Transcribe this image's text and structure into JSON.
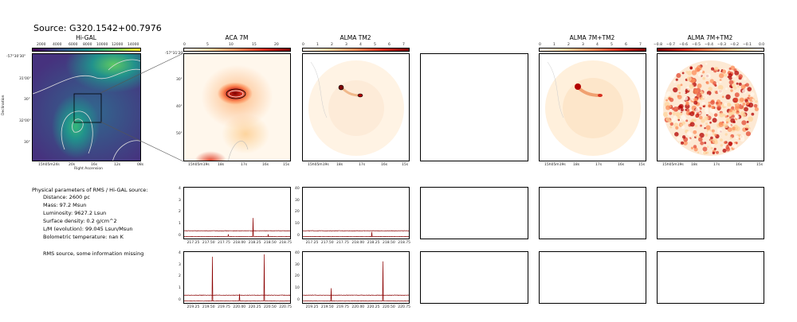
{
  "figure": {
    "title": "Source: G320.1542+00.7976"
  },
  "panels": {
    "higal": {
      "title": "Hi-GAL",
      "cbar_ticks": [
        "2000",
        "4000",
        "6000",
        "8000",
        "10000",
        "12000",
        "14000"
      ],
      "x_ticks": [
        "15h05m24s",
        "20s",
        "16s",
        "12s",
        "08s"
      ],
      "xlabel": "Right Ascension",
      "ylabel": "Declination",
      "y_ticks": [
        "-57°30'30\"",
        "31'00\"",
        "30\"",
        "32'00\"",
        "30\""
      ]
    },
    "aca": {
      "title": "ACA 7M",
      "cbar_ticks": [
        "0",
        "5",
        "10",
        "15",
        "20"
      ],
      "y_ticks": [
        "-57°31'20\"",
        "30\"",
        "40\"",
        "50\""
      ],
      "x_ticks": [
        "15h05m19s",
        "18s",
        "17s",
        "16s",
        "15s"
      ]
    },
    "tm2": {
      "title": "ALMA TM2",
      "cbar_ticks": [
        "0",
        "1",
        "2",
        "3",
        "4",
        "5",
        "6",
        "7"
      ],
      "x_ticks": [
        "15h05m19s",
        "18s",
        "17s",
        "16s",
        "15s"
      ]
    },
    "combo": {
      "title": "ALMA 7M+TM2",
      "cbar_ticks": [
        "0",
        "1",
        "2",
        "3",
        "4",
        "5",
        "6",
        "7"
      ],
      "x_ticks": [
        "15h05m19s",
        "18s",
        "17s",
        "16s",
        "15s"
      ]
    },
    "resid": {
      "title": "ALMA 7M+TM2",
      "cbar_ticks": [
        "−0.8",
        "−0.7",
        "−0.6",
        "−0.5",
        "−0.4",
        "−0.3",
        "−0.2",
        "−0.1",
        "0.0"
      ],
      "x_ticks": [
        "15h05m19s",
        "18s",
        "17s",
        "16s",
        "15s"
      ]
    }
  },
  "info": {
    "heading": "Physical parameters of RMS / Hi-GAL source:",
    "lines": [
      "Distance: 2600 pc",
      "Mass: 97.2 Msun",
      "Luminosity: 9627.2 Lsun",
      "Surface density: 0.2 g/cm^2",
      "L/M (evolution): 99.045 Lsun/Msun",
      "Bolometric temperature: nan K"
    ],
    "note": "RMS source, some information missing"
  },
  "chart_data": [
    {
      "type": "line",
      "panel": "ACA spectrum, spw 1",
      "x_ticks": [
        "217.25",
        "217.50",
        "217.75",
        "218.00",
        "218.25",
        "218.50",
        "218.75"
      ],
      "y_ticks": [
        "0",
        "1",
        "2",
        "3",
        "4"
      ],
      "xlim": [
        217.1,
        218.85
      ],
      "ylim": [
        -0.3,
        4.2
      ],
      "series": [
        {
          "baseline": 0.0,
          "peaks": [
            [
              217.82,
              0.2
            ],
            [
              218.22,
              1.6
            ],
            [
              218.47,
              0.2
            ]
          ]
        },
        {
          "baseline": 0.5,
          "peaks": []
        }
      ]
    },
    {
      "type": "line",
      "panel": "TM2 spectrum, spw 1",
      "x_ticks": [
        "217.25",
        "217.50",
        "217.75",
        "218.00",
        "218.25",
        "218.50",
        "218.75"
      ],
      "y_ticks": [
        "0",
        "10",
        "20",
        "30",
        "40"
      ],
      "xlim": [
        217.1,
        218.85
      ],
      "ylim": [
        -3,
        42
      ],
      "series": [
        {
          "baseline": 0.0,
          "peaks": [
            [
              218.22,
              4
            ]
          ]
        },
        {
          "baseline": 5.0,
          "peaks": []
        }
      ]
    },
    {
      "type": "line",
      "panel": "ACA spectrum, spw 2",
      "x_ticks": [
        "219.25",
        "219.50",
        "219.75",
        "220.00",
        "220.25",
        "220.50",
        "220.75"
      ],
      "y_ticks": [
        "0",
        "1",
        "2",
        "3",
        "4"
      ],
      "xlim": [
        219.1,
        220.85
      ],
      "ylim": [
        -0.3,
        4.2
      ],
      "series": [
        {
          "baseline": 0.0,
          "peaks": [
            [
              219.56,
              3.8
            ],
            [
              220.0,
              0.6
            ],
            [
              220.4,
              4.0
            ]
          ]
        },
        {
          "baseline": 0.5,
          "peaks": []
        }
      ]
    },
    {
      "type": "line",
      "panel": "TM2 spectrum, spw 2",
      "x_ticks": [
        "219.25",
        "219.50",
        "219.75",
        "220.00",
        "220.25",
        "220.50",
        "220.75"
      ],
      "y_ticks": [
        "0",
        "10",
        "20",
        "30",
        "40"
      ],
      "xlim": [
        219.1,
        220.85
      ],
      "ylim": [
        -3,
        42
      ],
      "series": [
        {
          "baseline": 0.0,
          "peaks": [
            [
              219.56,
              11
            ],
            [
              220.4,
              34
            ]
          ]
        },
        {
          "baseline": 5.0,
          "peaks": []
        }
      ]
    }
  ],
  "colors": {
    "spectrum": "#8b0000",
    "viridis_dark": "#440154",
    "viridis_mid": "#21918c",
    "viridis_light": "#fde725",
    "orrd_light": "#fff7ec",
    "orrd_dark": "#7f0000"
  }
}
